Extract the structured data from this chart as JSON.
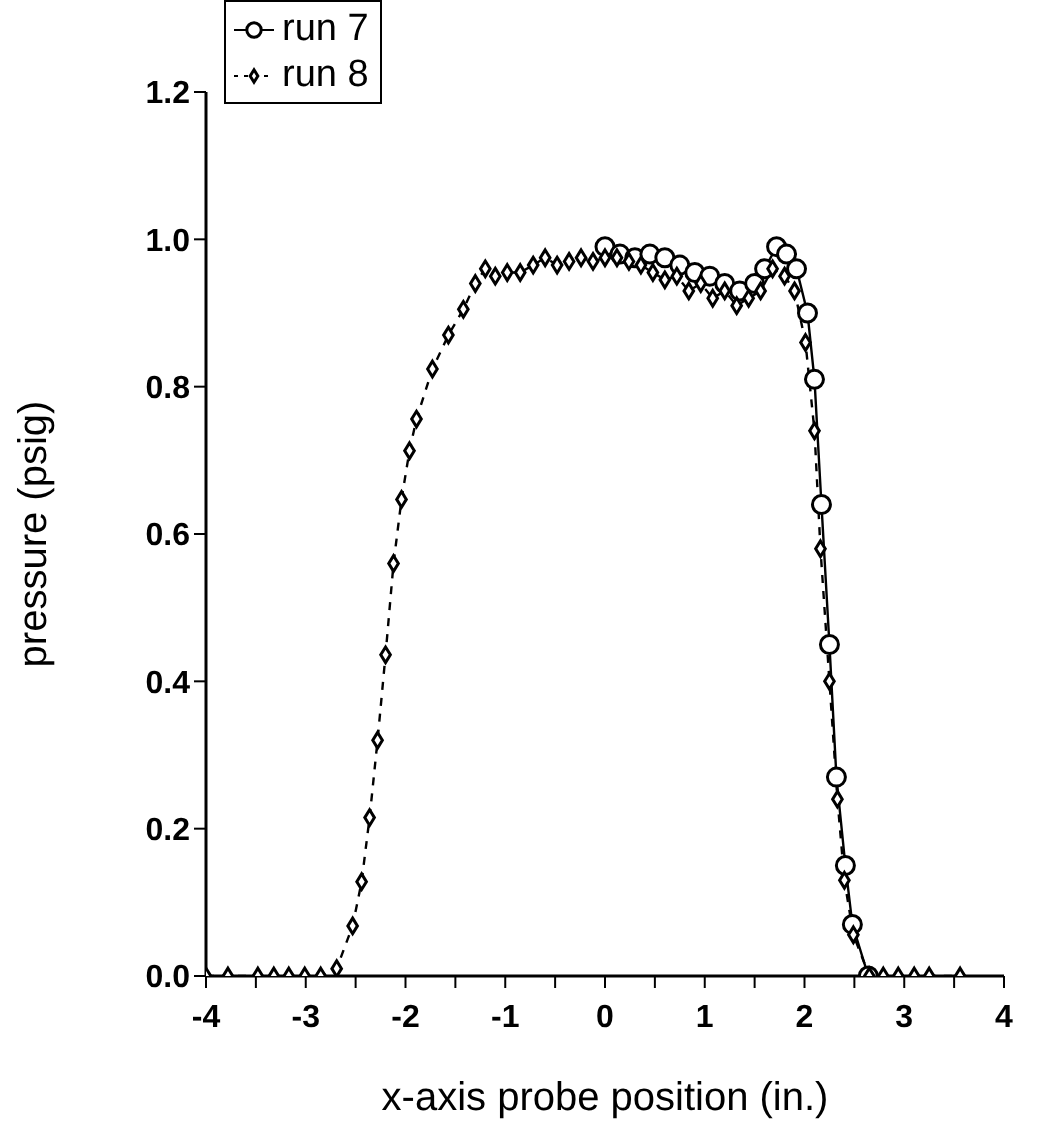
{
  "chart_data": {
    "type": "line",
    "xlabel": "x-axis probe position (in.)",
    "ylabel": "pressure (psig)",
    "xlim": [
      -4,
      4
    ],
    "xticks": [
      -4,
      {
        "value": -3.5,
        "label": null
      },
      -3,
      {
        "value": -2.5,
        "label": null
      },
      -2,
      {
        "value": -1.5,
        "label": null
      },
      -1,
      {
        "value": -0.5,
        "label": null
      },
      0,
      {
        "value": 0.5,
        "label": null
      },
      1,
      {
        "value": 1.5,
        "label": null
      },
      2,
      {
        "value": 2.5,
        "label": null
      },
      3,
      {
        "value": 3.5,
        "label": null
      },
      4
    ],
    "ylim": [
      0,
      1.2
    ],
    "yticks": [
      {
        "value": 0,
        "label": "0.0"
      },
      {
        "value": 0.2,
        "label": "0.2"
      },
      {
        "value": 0.4,
        "label": "0.4"
      },
      {
        "value": 0.6,
        "label": "0.6"
      },
      {
        "value": 0.8,
        "label": "0.8"
      },
      {
        "value": 1,
        "label": "1.0"
      },
      {
        "value": 1.2,
        "label": "1.2"
      }
    ],
    "grid": false,
    "legend": "top left",
    "series": [
      {
        "name": "run 7",
        "color": "#000000",
        "marker": "circle",
        "line_style": "solid",
        "x": [
          0,
          0.15,
          0.3,
          0.45,
          0.6,
          0.75,
          0.9,
          1.05,
          1.2,
          1.35,
          1.5,
          1.6,
          1.72,
          1.82,
          1.92,
          2.03,
          2.1,
          2.17,
          2.25,
          2.32,
          2.41,
          2.48,
          2.64
        ],
        "values": [
          0.99,
          0.98,
          0.975,
          0.98,
          0.975,
          0.965,
          0.955,
          0.95,
          0.94,
          0.93,
          0.94,
          0.96,
          0.99,
          0.98,
          0.96,
          0.9,
          0.81,
          0.64,
          0.45,
          0.27,
          0.15,
          0.07,
          0
        ]
      },
      {
        "name": "run 8",
        "color": "#000000",
        "marker": "diamond",
        "line_style": "dashed",
        "x": [
          -4,
          -3.78,
          -3.48,
          -3.32,
          -3.17,
          -3.01,
          -2.85,
          -2.69,
          -2.53,
          -2.44,
          -2.36,
          -2.28,
          -2.2,
          -2.12,
          -2.04,
          -1.96,
          -1.89,
          -1.73,
          -1.57,
          -1.42,
          -1.3,
          -1.2,
          -1.1,
          -0.98,
          -0.85,
          -0.72,
          -0.6,
          -0.48,
          -0.36,
          -0.24,
          -0.12,
          0,
          0.12,
          0.24,
          0.36,
          0.48,
          0.6,
          0.72,
          0.84,
          0.96,
          1.08,
          1.2,
          1.32,
          1.44,
          1.56,
          1.68,
          1.8,
          1.9,
          2.01,
          2.1,
          2.16,
          2.25,
          2.33,
          2.4,
          2.49,
          2.65,
          2.79,
          2.94,
          3.1,
          3.25,
          3.56
        ],
        "values": [
          0,
          0,
          0,
          0,
          0,
          0,
          0,
          0.01,
          0.068,
          0.128,
          0.215,
          0.32,
          0.436,
          0.56,
          0.647,
          0.713,
          0.756,
          0.824,
          0.87,
          0.905,
          0.94,
          0.96,
          0.95,
          0.955,
          0.955,
          0.965,
          0.975,
          0.965,
          0.97,
          0.975,
          0.97,
          0.975,
          0.975,
          0.97,
          0.965,
          0.955,
          0.945,
          0.95,
          0.93,
          0.94,
          0.92,
          0.93,
          0.91,
          0.92,
          0.93,
          0.96,
          0.95,
          0.93,
          0.86,
          0.74,
          0.58,
          0.4,
          0.24,
          0.13,
          0.056,
          0,
          0,
          0,
          0,
          0,
          0
        ]
      }
    ]
  }
}
